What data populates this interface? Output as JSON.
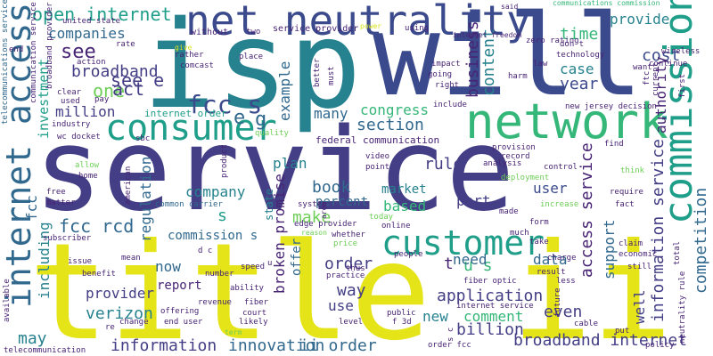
{
  "palette": {
    "navy": "#3b4a8c",
    "indigo": "#433e85",
    "purple": "#482475",
    "teal": "#26828e",
    "sea": "#1f9e89",
    "green": "#35b779",
    "lime": "#6ece58",
    "yellow": "#d8e219",
    "bright": "#e4e419",
    "blue": "#31688e"
  },
  "words": [
    {
      "id": "service",
      "text": "service"
    },
    {
      "id": "title-ii",
      "text": "title ii"
    },
    {
      "id": "isp",
      "text": "isp"
    },
    {
      "id": "will",
      "text": "will"
    },
    {
      "id": "net-neutrality",
      "text": "net neutrality"
    },
    {
      "id": "network",
      "text": "network"
    },
    {
      "id": "consumer",
      "text": "consumer"
    },
    {
      "id": "commission",
      "text": "commission"
    },
    {
      "id": "internet-access",
      "text": "internet access"
    },
    {
      "id": "customer",
      "text": "customer"
    },
    {
      "id": "open-internet",
      "text": "open internet"
    },
    {
      "id": "fcc-s",
      "text": "fcc s"
    },
    {
      "id": "see-e",
      "text": "see e"
    },
    {
      "id": "see",
      "text": "see"
    },
    {
      "id": "broadband",
      "text": "broadband"
    },
    {
      "id": "one",
      "text": "one"
    },
    {
      "id": "act",
      "text": "act"
    },
    {
      "id": "companies",
      "text": "companies"
    },
    {
      "id": "investment",
      "text": "investment"
    },
    {
      "id": "million",
      "text": "million"
    },
    {
      "id": "e",
      "text": "e"
    },
    {
      "id": "g",
      "text": "g"
    },
    {
      "id": "internet-order",
      "text": "internet order"
    },
    {
      "id": "many",
      "text": "many"
    },
    {
      "id": "congress",
      "text": "congress"
    },
    {
      "id": "section",
      "text": "section"
    },
    {
      "id": "example",
      "text": "example"
    },
    {
      "id": "business",
      "text": "business"
    },
    {
      "id": "content",
      "text": "content"
    },
    {
      "id": "time",
      "text": "time"
    },
    {
      "id": "provide",
      "text": "provide"
    },
    {
      "id": "cost",
      "text": "cost"
    },
    {
      "id": "year",
      "text": "year"
    },
    {
      "id": "case",
      "text": "case"
    },
    {
      "id": "authority",
      "text": "authority"
    },
    {
      "id": "information-service",
      "text": "information service"
    },
    {
      "id": "competition",
      "text": "competition"
    },
    {
      "id": "federal-communication",
      "text": "federal communication"
    },
    {
      "id": "rule",
      "text": "rule"
    },
    {
      "id": "plan",
      "text": "plan"
    },
    {
      "id": "company",
      "text": "company"
    },
    {
      "id": "regulation",
      "text": "regulation"
    },
    {
      "id": "fcc-rcd",
      "text": "fcc rcd"
    },
    {
      "id": "book",
      "text": "book"
    },
    {
      "id": "based",
      "text": "based"
    },
    {
      "id": "market",
      "text": "market"
    },
    {
      "id": "part",
      "text": "part"
    },
    {
      "id": "user",
      "text": "user"
    },
    {
      "id": "percent",
      "text": "percent"
    },
    {
      "id": "access-service",
      "text": "access service"
    },
    {
      "id": "make",
      "text": "make"
    },
    {
      "id": "u-s",
      "text": "u s"
    },
    {
      "id": "s-mid",
      "text": "s"
    },
    {
      "id": "commission-s",
      "text": "commission s"
    },
    {
      "id": "state",
      "text": "state"
    },
    {
      "id": "broken-promise",
      "text": "broken promise"
    },
    {
      "id": "offer",
      "text": "offer"
    },
    {
      "id": "order",
      "text": "order"
    },
    {
      "id": "need",
      "text": "need"
    },
    {
      "id": "data",
      "text": "data"
    },
    {
      "id": "support",
      "text": "support"
    },
    {
      "id": "well",
      "text": "well"
    },
    {
      "id": "now",
      "text": "now"
    },
    {
      "id": "report",
      "text": "report"
    },
    {
      "id": "provider",
      "text": "provider"
    },
    {
      "id": "way",
      "text": "way"
    },
    {
      "id": "use",
      "text": "use"
    },
    {
      "id": "application",
      "text": "application"
    },
    {
      "id": "even",
      "text": "even"
    },
    {
      "id": "comment",
      "text": "comment"
    },
    {
      "id": "billion",
      "text": "billion"
    },
    {
      "id": "new",
      "text": "new"
    },
    {
      "id": "verizon",
      "text": "verizon"
    },
    {
      "id": "including",
      "text": "including"
    },
    {
      "id": "may",
      "text": "may"
    },
    {
      "id": "information",
      "text": "information"
    },
    {
      "id": "innovation",
      "text": "innovation"
    },
    {
      "id": "ii-order",
      "text": "ii order"
    },
    {
      "id": "broadband-internet",
      "text": "broadband internet"
    },
    {
      "id": "fcc-left",
      "text": "fcc"
    },
    {
      "id": "two",
      "text": "two"
    },
    {
      "id": "service-provider",
      "text": "service provider"
    },
    {
      "id": "power",
      "text": "power"
    },
    {
      "id": "using",
      "text": "using"
    },
    {
      "id": "said",
      "text": "said"
    },
    {
      "id": "communications-commission",
      "text": "communications commission"
    },
    {
      "id": "don-t",
      "text": "don t"
    },
    {
      "id": "technology",
      "text": "technology"
    },
    {
      "id": "zero-rating",
      "text": "zero rating"
    },
    {
      "id": "wireless",
      "text": "wireless"
    },
    {
      "id": "continue",
      "text": "continue"
    },
    {
      "id": "internet-freedom",
      "text": "internet freedom"
    },
    {
      "id": "law",
      "text": "law"
    },
    {
      "id": "harm",
      "text": "harm"
    },
    {
      "id": "united-state",
      "text": "united state"
    },
    {
      "id": "communication-service",
      "text": "communication service"
    },
    {
      "id": "telecommunications-service",
      "text": "telecommunications service"
    },
    {
      "id": "end",
      "text": "end"
    },
    {
      "id": "broadband-provider",
      "text": "broadband provider"
    },
    {
      "id": "rate",
      "text": "rate"
    },
    {
      "id": "action",
      "text": "action"
    },
    {
      "id": "give",
      "text": "give"
    },
    {
      "id": "rather",
      "text": "rather"
    },
    {
      "id": "without",
      "text": "without"
    },
    {
      "id": "comcast",
      "text": "comcast"
    },
    {
      "id": "place",
      "text": "place"
    },
    {
      "id": "impact",
      "text": "impact"
    },
    {
      "id": "going",
      "text": "going"
    },
    {
      "id": "right",
      "text": "right"
    },
    {
      "id": "include",
      "text": "include"
    },
    {
      "id": "better",
      "text": "better"
    },
    {
      "id": "must",
      "text": "must"
    },
    {
      "id": "ftc",
      "text": "ftc"
    },
    {
      "id": "want",
      "text": "want"
    },
    {
      "id": "current",
      "text": "current"
    },
    {
      "id": "first",
      "text": "first"
    },
    {
      "id": "new-jersey-decision",
      "text": "new jersey decision"
    },
    {
      "id": "used",
      "text": "used"
    },
    {
      "id": "pay",
      "text": "pay"
    },
    {
      "id": "clear",
      "text": "clear"
    },
    {
      "id": "industry",
      "text": "industry"
    },
    {
      "id": "wc-docket",
      "text": "wc docket"
    },
    {
      "id": "sbc",
      "text": "sbc"
    },
    {
      "id": "quality",
      "text": "quality"
    },
    {
      "id": "provision",
      "text": "provision"
    },
    {
      "id": "record",
      "text": "record"
    },
    {
      "id": "find",
      "text": "find"
    },
    {
      "id": "video",
      "text": "video"
    },
    {
      "id": "point",
      "text": "point"
    },
    {
      "id": "analysis",
      "text": "analysis"
    },
    {
      "id": "control",
      "text": "control"
    },
    {
      "id": "deployment",
      "text": "deployment"
    },
    {
      "id": "think",
      "text": "think"
    },
    {
      "id": "allow",
      "text": "allow"
    },
    {
      "id": "home",
      "text": "home"
    },
    {
      "id": "free",
      "text": "free"
    },
    {
      "id": "matter",
      "text": "matter"
    },
    {
      "id": "american",
      "text": "american"
    },
    {
      "id": "product",
      "text": "product"
    },
    {
      "id": "common-carrier",
      "text": "common carrier"
    },
    {
      "id": "system",
      "text": "system"
    },
    {
      "id": "area",
      "text": "area"
    },
    {
      "id": "edge-provider",
      "text": "edge provider"
    },
    {
      "id": "today",
      "text": "today"
    },
    {
      "id": "online",
      "text": "online"
    },
    {
      "id": "whether",
      "text": "whether"
    },
    {
      "id": "increase",
      "text": "increase"
    },
    {
      "id": "form",
      "text": "form"
    },
    {
      "id": "made",
      "text": "made"
    },
    {
      "id": "require",
      "text": "require"
    },
    {
      "id": "fact",
      "text": "fact"
    },
    {
      "id": "subscriber",
      "text": "subscriber"
    },
    {
      "id": "issue",
      "text": "issue"
    },
    {
      "id": "mean",
      "text": "mean"
    },
    {
      "id": "d-c",
      "text": "d c"
    },
    {
      "id": "price",
      "text": "price"
    },
    {
      "id": "reason",
      "text": "reason"
    },
    {
      "id": "thus",
      "text": "thus"
    },
    {
      "id": "much",
      "text": "much"
    },
    {
      "id": "take",
      "text": "take"
    },
    {
      "id": "claim",
      "text": "claim"
    },
    {
      "id": "economic",
      "text": "economic"
    },
    {
      "id": "still",
      "text": "still"
    },
    {
      "id": "total",
      "text": "total"
    },
    {
      "id": "benefit",
      "text": "benefit"
    },
    {
      "id": "number",
      "text": "number"
    },
    {
      "id": "ability",
      "text": "ability"
    },
    {
      "id": "speed",
      "text": "speed"
    },
    {
      "id": "fiber",
      "text": "fiber"
    },
    {
      "id": "practice",
      "text": "practice"
    },
    {
      "id": "people",
      "text": "people"
    },
    {
      "id": "result",
      "text": "result"
    },
    {
      "id": "charge",
      "text": "charge"
    },
    {
      "id": "fiber-optic",
      "text": "fiber optic"
    },
    {
      "id": "less",
      "text": "less"
    },
    {
      "id": "offering",
      "text": "offering"
    },
    {
      "id": "change",
      "text": "change"
    },
    {
      "id": "end-user",
      "text": "end user"
    },
    {
      "id": "revenue",
      "text": "revenue"
    },
    {
      "id": "court",
      "text": "court"
    },
    {
      "id": "likely",
      "text": "likely"
    },
    {
      "id": "term",
      "text": "term"
    },
    {
      "id": "level",
      "text": "level"
    },
    {
      "id": "public",
      "text": "public"
    },
    {
      "id": "f-3d",
      "text": "f 3d"
    },
    {
      "id": "internet-service",
      "text": "internet service"
    },
    {
      "id": "s-c",
      "text": "s c"
    },
    {
      "id": "future",
      "text": "future"
    },
    {
      "id": "cable",
      "text": "cable"
    },
    {
      "id": "put",
      "text": "put"
    },
    {
      "id": "order-fcc",
      "text": "order fcc"
    },
    {
      "id": "policy",
      "text": "policy"
    },
    {
      "id": "neutrality-rule",
      "text": "neutrality rule"
    },
    {
      "id": "telecommunication",
      "text": "telecommunication"
    },
    {
      "id": "available",
      "text": "available"
    },
    {
      "id": "re",
      "text": "re"
    },
    {
      "id": "t-small",
      "text": "t"
    },
    {
      "id": "u-small",
      "text": "u"
    }
  ]
}
